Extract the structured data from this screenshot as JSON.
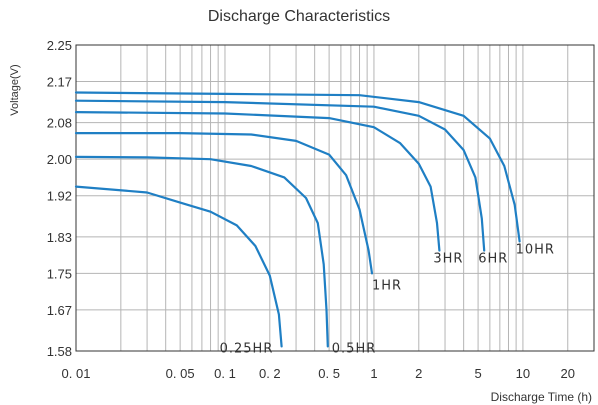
{
  "chart_data": {
    "type": "line",
    "title": "Discharge Characteristics",
    "xlabel": "Discharge Time  (h)",
    "ylabel": "Voltage(V)",
    "x_scale": "log",
    "xlim": [
      0.01,
      30
    ],
    "ylim": [
      1.58,
      2.25
    ],
    "x_ticks": [
      {
        "value": 0.01,
        "label": "0. 01"
      },
      {
        "value": 0.05,
        "label": "0. 05"
      },
      {
        "value": 0.1,
        "label": "0. 1"
      },
      {
        "value": 0.2,
        "label": "0. 2"
      },
      {
        "value": 0.5,
        "label": "0. 5"
      },
      {
        "value": 1,
        "label": "1"
      },
      {
        "value": 2,
        "label": "2"
      },
      {
        "value": 5,
        "label": "5"
      },
      {
        "value": 10,
        "label": "10"
      },
      {
        "value": 20,
        "label": "20"
      }
    ],
    "x_grid": [
      0.01,
      0.02,
      0.03,
      0.04,
      0.05,
      0.06,
      0.07,
      0.08,
      0.09,
      0.1,
      0.2,
      0.3,
      0.4,
      0.5,
      0.6,
      0.7,
      0.8,
      0.9,
      1,
      2,
      3,
      4,
      5,
      6,
      7,
      8,
      9,
      10,
      20,
      30
    ],
    "y_ticks": [
      {
        "value": 1.58,
        "label": "1.58"
      },
      {
        "value": 1.67,
        "label": "1.67"
      },
      {
        "value": 1.75,
        "label": "1.75"
      },
      {
        "value": 1.83,
        "label": "1.83"
      },
      {
        "value": 1.92,
        "label": "1.92"
      },
      {
        "value": 2.0,
        "label": "2.00"
      },
      {
        "value": 2.08,
        "label": "2.08"
      },
      {
        "value": 2.17,
        "label": "2.17"
      },
      {
        "value": 2.25,
        "label": "2.25"
      }
    ],
    "grid": true,
    "line_color": "#1f7fc4",
    "series": [
      {
        "name": "0.25HR",
        "points": [
          [
            0.01,
            1.94
          ],
          [
            0.03,
            1.927
          ],
          [
            0.05,
            1.905
          ],
          [
            0.08,
            1.885
          ],
          [
            0.12,
            1.855
          ],
          [
            0.16,
            1.81
          ],
          [
            0.2,
            1.745
          ],
          [
            0.23,
            1.66
          ],
          [
            0.24,
            1.59
          ]
        ]
      },
      {
        "name": "0.5HR",
        "points": [
          [
            0.01,
            2.005
          ],
          [
            0.03,
            2.004
          ],
          [
            0.08,
            2.0
          ],
          [
            0.15,
            1.985
          ],
          [
            0.25,
            1.96
          ],
          [
            0.35,
            1.915
          ],
          [
            0.42,
            1.86
          ],
          [
            0.46,
            1.77
          ],
          [
            0.48,
            1.67
          ],
          [
            0.49,
            1.59
          ]
        ]
      },
      {
        "name": "1HR",
        "points": [
          [
            0.01,
            2.057
          ],
          [
            0.05,
            2.057
          ],
          [
            0.15,
            2.054
          ],
          [
            0.3,
            2.04
          ],
          [
            0.5,
            2.01
          ],
          [
            0.65,
            1.965
          ],
          [
            0.8,
            1.89
          ],
          [
            0.92,
            1.8
          ],
          [
            0.97,
            1.75
          ]
        ]
      },
      {
        "name": "3HR",
        "points": [
          [
            0.01,
            2.103
          ],
          [
            0.1,
            2.1
          ],
          [
            0.5,
            2.09
          ],
          [
            1,
            2.07
          ],
          [
            1.5,
            2.035
          ],
          [
            2,
            1.99
          ],
          [
            2.4,
            1.94
          ],
          [
            2.65,
            1.86
          ],
          [
            2.75,
            1.8
          ]
        ]
      },
      {
        "name": "6HR",
        "points": [
          [
            0.01,
            2.128
          ],
          [
            0.1,
            2.125
          ],
          [
            1,
            2.115
          ],
          [
            2,
            2.095
          ],
          [
            3,
            2.065
          ],
          [
            4,
            2.02
          ],
          [
            4.8,
            1.96
          ],
          [
            5.3,
            1.87
          ],
          [
            5.5,
            1.8
          ]
        ]
      },
      {
        "name": "10HR",
        "points": [
          [
            0.01,
            2.146
          ],
          [
            0.1,
            2.143
          ],
          [
            0.8,
            2.14
          ],
          [
            2,
            2.125
          ],
          [
            4,
            2.095
          ],
          [
            6,
            2.045
          ],
          [
            7.5,
            1.985
          ],
          [
            8.8,
            1.9
          ],
          [
            9.5,
            1.82
          ]
        ]
      }
    ],
    "curve_labels": [
      "0.25HR",
      "0.5HR",
      "1HR",
      "3HR",
      "6HR",
      "10HR"
    ]
  }
}
